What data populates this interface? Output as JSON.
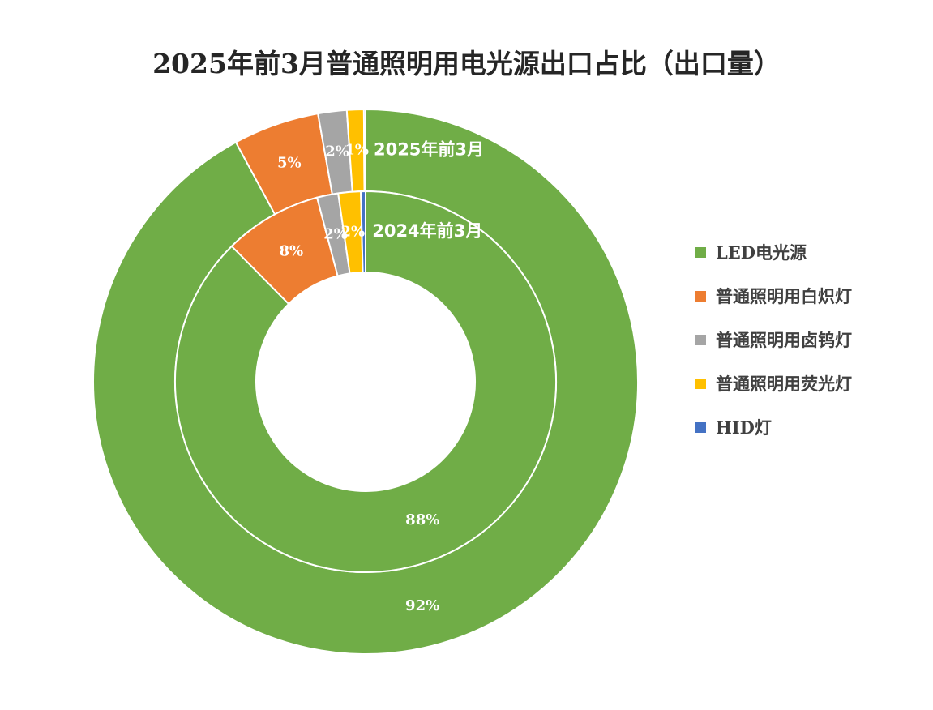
{
  "title": "2025年前3月普通照明用电光源出口占比（出口量）",
  "chart_data": {
    "type": "pie",
    "variant": "doughnut",
    "title": "2025年前3月普通照明用电光源出口占比（出口量）",
    "categories": [
      "LED电光源",
      "普通照明用白炽灯",
      "普通照明用卤钨灯",
      "普通照明用荧光灯",
      "HID灯"
    ],
    "colors": [
      "#70AD47",
      "#ED7D31",
      "#A5A5A5",
      "#FFC000",
      "#4472C4"
    ],
    "legend_position": "right",
    "series": [
      {
        "name": "2025年前3月",
        "ring": "outer",
        "values": [
          92.1,
          5.1,
          1.7,
          1.0,
          0.1
        ],
        "labels": [
          "92%",
          "5%",
          "2%",
          "1%",
          ""
        ]
      },
      {
        "name": "2024年前3月",
        "ring": "inner",
        "values": [
          87.6,
          8.3,
          1.8,
          1.9,
          0.4
        ],
        "labels": [
          "88%",
          "8%",
          "2%",
          "2%",
          ""
        ]
      }
    ]
  }
}
